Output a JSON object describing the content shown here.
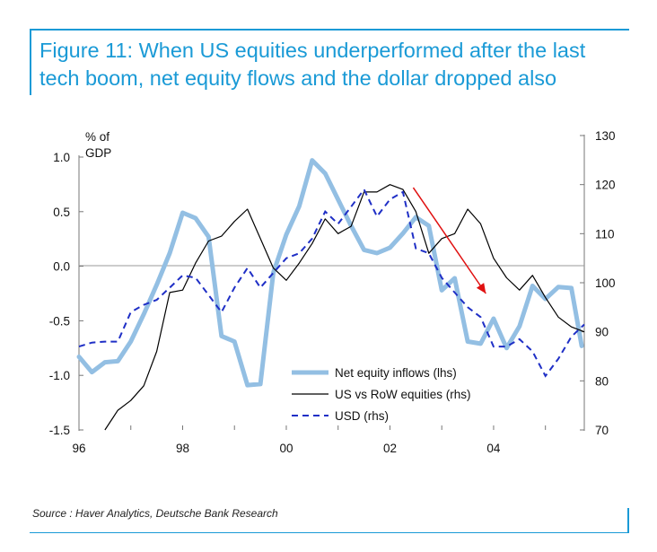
{
  "figure": {
    "title_line1": "Figure 11: When US equities underperformed after the last",
    "title_line2": "tech boom, net equity flows and the dollar dropped also"
  },
  "source": "Source : Haver Analytics, Deutsche Bank Research",
  "colors": {
    "accent": "#1a9ad6",
    "net_equity": "#93bfe3",
    "us_row": "#000000",
    "usd": "#1f2fc6",
    "arrow": "#e01010"
  },
  "chart_data": {
    "type": "line",
    "ylabel_left_line1": "% of",
    "ylabel_left_line2": "GDP",
    "x_ticks": [
      "96",
      "98",
      "00",
      "02",
      "04"
    ],
    "x_tick_values": [
      1996,
      1998,
      2000,
      2002,
      2004
    ],
    "xlim": [
      1996,
      2005.75
    ],
    "ylim_left": [
      -1.5,
      1.0
    ],
    "y_ticks_left": [
      "1.0",
      "0.5",
      "0.0",
      "-0.5",
      "-1.0",
      "-1.5"
    ],
    "y_tick_values_left": [
      1.0,
      0.5,
      0.0,
      -0.5,
      -1.0,
      -1.5
    ],
    "ylim_right": [
      70,
      130
    ],
    "y_ticks_right": [
      "130",
      "120",
      "110",
      "100",
      "90",
      "80",
      "70"
    ],
    "y_tick_values_right": [
      130,
      120,
      110,
      100,
      90,
      80,
      70
    ],
    "zero_line": 0.0,
    "legend_position": "lower-center",
    "series": [
      {
        "name": "Net equity inflows (lhs)",
        "axis": "left",
        "style": "thick-solid",
        "points": [
          [
            1996.0,
            -0.83
          ],
          [
            1996.25,
            -0.97
          ],
          [
            1996.5,
            -0.88
          ],
          [
            1996.75,
            -0.87
          ],
          [
            1997.0,
            -0.69
          ],
          [
            1997.25,
            -0.44
          ],
          [
            1997.5,
            -0.17
          ],
          [
            1997.75,
            0.12
          ],
          [
            1998.0,
            0.49
          ],
          [
            1998.25,
            0.44
          ],
          [
            1998.5,
            0.27
          ],
          [
            1998.75,
            -0.64
          ],
          [
            1999.0,
            -0.69
          ],
          [
            1999.25,
            -1.09
          ],
          [
            1999.5,
            -1.08
          ],
          [
            1999.75,
            -0.06
          ],
          [
            2000.0,
            0.29
          ],
          [
            2000.25,
            0.55
          ],
          [
            2000.5,
            0.97
          ],
          [
            2000.75,
            0.85
          ],
          [
            2001.0,
            0.61
          ],
          [
            2001.25,
            0.37
          ],
          [
            2001.5,
            0.15
          ],
          [
            2001.75,
            0.12
          ],
          [
            2002.0,
            0.17
          ],
          [
            2002.25,
            0.3
          ],
          [
            2002.5,
            0.45
          ],
          [
            2002.75,
            0.37
          ],
          [
            2003.0,
            -0.22
          ],
          [
            2003.25,
            -0.11
          ],
          [
            2003.5,
            -0.69
          ],
          [
            2003.75,
            -0.71
          ],
          [
            2004.0,
            -0.48
          ],
          [
            2004.25,
            -0.75
          ],
          [
            2004.5,
            -0.55
          ],
          [
            2004.75,
            -0.18
          ],
          [
            2005.0,
            -0.3
          ],
          [
            2005.25,
            -0.19
          ],
          [
            2005.5,
            -0.2
          ],
          [
            2005.7,
            -0.73
          ]
        ]
      },
      {
        "name": "US vs RoW equities (rhs)",
        "axis": "right",
        "style": "thin-solid",
        "points": [
          [
            1996.5,
            70.0
          ],
          [
            1996.75,
            74.0
          ],
          [
            1997.0,
            76.0
          ],
          [
            1997.25,
            79.0
          ],
          [
            1997.5,
            86.0
          ],
          [
            1997.75,
            98.0
          ],
          [
            1998.0,
            98.5
          ],
          [
            1998.25,
            104.0
          ],
          [
            1998.5,
            108.5
          ],
          [
            1998.75,
            109.5
          ],
          [
            1999.0,
            112.5
          ],
          [
            1999.25,
            115.0
          ],
          [
            1999.5,
            109.0
          ],
          [
            1999.75,
            103.0
          ],
          [
            2000.0,
            100.5
          ],
          [
            2000.25,
            104.0
          ],
          [
            2000.5,
            108.0
          ],
          [
            2000.75,
            113.0
          ],
          [
            2001.0,
            110.0
          ],
          [
            2001.25,
            111.5
          ],
          [
            2001.5,
            118.5
          ],
          [
            2001.75,
            118.5
          ],
          [
            2002.0,
            120.0
          ],
          [
            2002.25,
            119.0
          ],
          [
            2002.5,
            114.5
          ],
          [
            2002.75,
            106.0
          ],
          [
            2003.0,
            109.0
          ],
          [
            2003.25,
            110.0
          ],
          [
            2003.5,
            115.0
          ],
          [
            2003.75,
            112.0
          ],
          [
            2004.0,
            105.0
          ],
          [
            2004.25,
            101.0
          ],
          [
            2004.5,
            98.5
          ],
          [
            2004.75,
            101.5
          ],
          [
            2005.0,
            97.0
          ],
          [
            2005.25,
            93.0
          ],
          [
            2005.5,
            91.0
          ],
          [
            2005.75,
            90.0
          ]
        ]
      },
      {
        "name": "USD (rhs)",
        "axis": "right",
        "style": "dashed",
        "points": [
          [
            1996.0,
            87.0
          ],
          [
            1996.25,
            87.8
          ],
          [
            1996.5,
            88.0
          ],
          [
            1996.75,
            88.0
          ],
          [
            1997.0,
            94.0
          ],
          [
            1997.25,
            95.5
          ],
          [
            1997.5,
            96.5
          ],
          [
            1997.75,
            99.0
          ],
          [
            1998.0,
            101.5
          ],
          [
            1998.25,
            101.0
          ],
          [
            1998.5,
            97.5
          ],
          [
            1998.75,
            94.0
          ],
          [
            1999.0,
            99.0
          ],
          [
            1999.25,
            103.0
          ],
          [
            1999.5,
            99.0
          ],
          [
            1999.75,
            102.0
          ],
          [
            2000.0,
            105.0
          ],
          [
            2000.25,
            106.0
          ],
          [
            2000.5,
            109.0
          ],
          [
            2000.75,
            114.5
          ],
          [
            2001.0,
            112.0
          ],
          [
            2001.25,
            115.5
          ],
          [
            2001.5,
            119.0
          ],
          [
            2001.75,
            113.5
          ],
          [
            2002.0,
            117.0
          ],
          [
            2002.25,
            118.5
          ],
          [
            2002.5,
            107.0
          ],
          [
            2002.75,
            106.0
          ],
          [
            2003.0,
            101.0
          ],
          [
            2003.25,
            98.0
          ],
          [
            2003.5,
            95.0
          ],
          [
            2003.75,
            93.0
          ],
          [
            2004.0,
            87.0
          ],
          [
            2004.25,
            87.0
          ],
          [
            2004.5,
            88.5
          ],
          [
            2004.75,
            86.0
          ],
          [
            2005.0,
            81.0
          ],
          [
            2005.25,
            84.5
          ],
          [
            2005.5,
            89.0
          ],
          [
            2005.75,
            91.5
          ]
        ]
      }
    ],
    "annotation": {
      "type": "arrow",
      "axis": "left",
      "from": [
        2002.45,
        0.72
      ],
      "to": [
        2003.85,
        -0.25
      ]
    }
  }
}
